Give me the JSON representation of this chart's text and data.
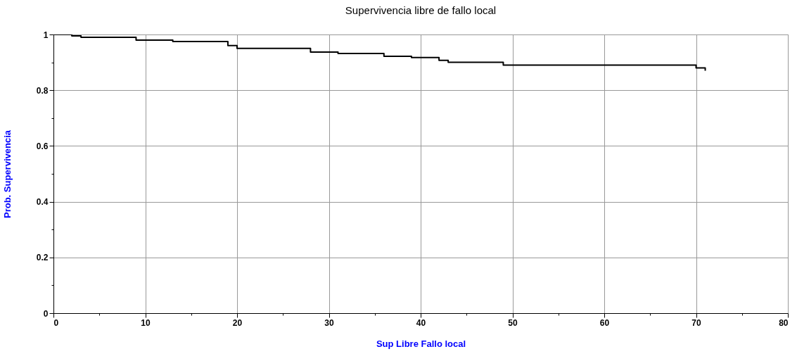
{
  "chart_data": {
    "type": "step",
    "title": "Supervivencia libre de fallo local",
    "xlabel": "Sup Libre Fallo local",
    "ylabel": "Prob. Supervivencia",
    "x": [
      0,
      2,
      3,
      9,
      13,
      19,
      20,
      28,
      31,
      36,
      39,
      42,
      43,
      49,
      70,
      71,
      71
    ],
    "series": [
      {
        "color": "#000000",
        "values": [
          1.0,
          0.995,
          0.99,
          0.98,
          0.975,
          0.96,
          0.95,
          0.937,
          0.932,
          0.922,
          0.917,
          0.907,
          0.9,
          0.89,
          0.88,
          0.87,
          0.87
        ]
      }
    ],
    "xlim": [
      0,
      80
    ],
    "ylim": [
      0,
      1
    ],
    "xticks": [
      0,
      {
        "value": 5,
        "label": null
      },
      10,
      {
        "value": 15,
        "label": null
      },
      20,
      {
        "value": 25,
        "label": null
      },
      30,
      {
        "value": 35,
        "label": null
      },
      40,
      {
        "value": 45,
        "label": null
      },
      50,
      {
        "value": 55,
        "label": null
      },
      60,
      {
        "value": 65,
        "label": null
      },
      70,
      {
        "value": 75,
        "label": null
      },
      80
    ],
    "yticks": [
      0,
      {
        "value": 0.1,
        "label": null
      },
      0.2,
      {
        "value": 0.3,
        "label": null
      },
      0.4,
      {
        "value": 0.5,
        "label": null
      },
      0.6,
      {
        "value": 0.7,
        "label": null
      },
      0.8,
      {
        "value": 0.9,
        "label": null
      },
      1
    ],
    "grid": true,
    "marker": "none",
    "line_style": "solid"
  }
}
